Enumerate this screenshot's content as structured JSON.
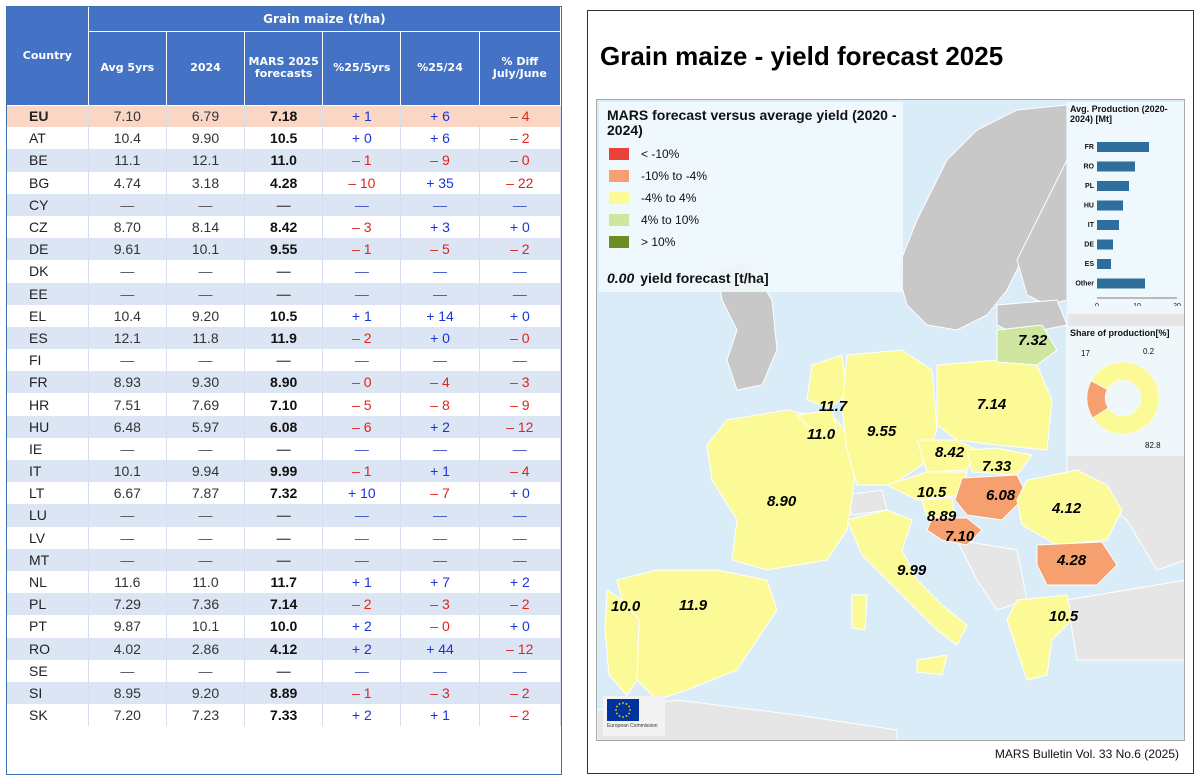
{
  "table": {
    "group_header": "Grain maize (t/ha)",
    "col_country": "Country",
    "col_headers": [
      "Avg 5yrs",
      "2024",
      "MARS 2025 forecasts",
      "%25/5yrs",
      "%25/24",
      "% Diff July/June"
    ],
    "rows": [
      {
        "country": "EU",
        "avg": "7.10",
        "y2024": "6.79",
        "mars": "7.18",
        "p5": "+ 1",
        "p24": "+ 6",
        "diff": "– 4"
      },
      {
        "country": "AT",
        "avg": "10.4",
        "y2024": "9.90",
        "mars": "10.5",
        "p5": "+ 0",
        "p24": "+ 6",
        "diff": "– 2"
      },
      {
        "country": "BE",
        "avg": "11.1",
        "y2024": "12.1",
        "mars": "11.0",
        "p5": "– 1",
        "p24": "– 9",
        "diff": "– 0"
      },
      {
        "country": "BG",
        "avg": "4.74",
        "y2024": "3.18",
        "mars": "4.28",
        "p5": "– 10",
        "p24": "+ 35",
        "diff": "– 22"
      },
      {
        "country": "CY",
        "avg": "—",
        "y2024": "—",
        "mars": "—",
        "p5": "—",
        "p24": "—",
        "diff": "—"
      },
      {
        "country": "CZ",
        "avg": "8.70",
        "y2024": "8.14",
        "mars": "8.42",
        "p5": "– 3",
        "p24": "+ 3",
        "diff": "+ 0"
      },
      {
        "country": "DE",
        "avg": "9.61",
        "y2024": "10.1",
        "mars": "9.55",
        "p5": "– 1",
        "p24": "– 5",
        "diff": "– 2"
      },
      {
        "country": "DK",
        "avg": "—",
        "y2024": "—",
        "mars": "—",
        "p5": "—",
        "p24": "—",
        "diff": "—"
      },
      {
        "country": "EE",
        "avg": "—",
        "y2024": "—",
        "mars": "—",
        "p5": "—",
        "p24": "—",
        "diff": "—"
      },
      {
        "country": "EL",
        "avg": "10.4",
        "y2024": "9.20",
        "mars": "10.5",
        "p5": "+ 1",
        "p24": "+ 14",
        "diff": "+ 0"
      },
      {
        "country": "ES",
        "avg": "12.1",
        "y2024": "11.8",
        "mars": "11.9",
        "p5": "– 2",
        "p24": "+ 0",
        "diff": "– 0"
      },
      {
        "country": "FI",
        "avg": "—",
        "y2024": "—",
        "mars": "—",
        "p5": "—",
        "p24": "—",
        "diff": "—"
      },
      {
        "country": "FR",
        "avg": "8.93",
        "y2024": "9.30",
        "mars": "8.90",
        "p5": "– 0",
        "p24": "– 4",
        "diff": "– 3"
      },
      {
        "country": "HR",
        "avg": "7.51",
        "y2024": "7.69",
        "mars": "7.10",
        "p5": "– 5",
        "p24": "– 8",
        "diff": "– 9"
      },
      {
        "country": "HU",
        "avg": "6.48",
        "y2024": "5.97",
        "mars": "6.08",
        "p5": "– 6",
        "p24": "+ 2",
        "diff": "– 12"
      },
      {
        "country": "IE",
        "avg": "—",
        "y2024": "—",
        "mars": "—",
        "p5": "—",
        "p24": "—",
        "diff": "—"
      },
      {
        "country": "IT",
        "avg": "10.1",
        "y2024": "9.94",
        "mars": "9.99",
        "p5": "– 1",
        "p24": "+ 1",
        "diff": "– 4"
      },
      {
        "country": "LT",
        "avg": "6.67",
        "y2024": "7.87",
        "mars": "7.32",
        "p5": "+ 10",
        "p24": "– 7",
        "diff": "+ 0"
      },
      {
        "country": "LU",
        "avg": "—",
        "y2024": "—",
        "mars": "—",
        "p5": "—",
        "p24": "—",
        "diff": "—"
      },
      {
        "country": "LV",
        "avg": "—",
        "y2024": "—",
        "mars": "—",
        "p5": "—",
        "p24": "—",
        "diff": "—"
      },
      {
        "country": "MT",
        "avg": "—",
        "y2024": "—",
        "mars": "—",
        "p5": "—",
        "p24": "—",
        "diff": "—"
      },
      {
        "country": "NL",
        "avg": "11.6",
        "y2024": "11.0",
        "mars": "11.7",
        "p5": "+ 1",
        "p24": "+ 7",
        "diff": "+ 2"
      },
      {
        "country": "PL",
        "avg": "7.29",
        "y2024": "7.36",
        "mars": "7.14",
        "p5": "– 2",
        "p24": "– 3",
        "diff": "– 2"
      },
      {
        "country": "PT",
        "avg": "9.87",
        "y2024": "10.1",
        "mars": "10.0",
        "p5": "+ 2",
        "p24": "– 0",
        "diff": "+ 0"
      },
      {
        "country": "RO",
        "avg": "4.02",
        "y2024": "2.86",
        "mars": "4.12",
        "p5": "+ 2",
        "p24": "+ 44",
        "diff": "– 12"
      },
      {
        "country": "SE",
        "avg": "—",
        "y2024": "—",
        "mars": "—",
        "p5": "—",
        "p24": "—",
        "diff": "—"
      },
      {
        "country": "SI",
        "avg": "8.95",
        "y2024": "9.20",
        "mars": "8.89",
        "p5": "– 1",
        "p24": "– 3",
        "diff": "– 2"
      },
      {
        "country": "SK",
        "avg": "7.20",
        "y2024": "7.23",
        "mars": "7.33",
        "p5": "+ 2",
        "p24": "+ 1",
        "diff": "– 2"
      }
    ]
  },
  "map": {
    "title": "Grain maize - yield forecast 2025",
    "legend_title": "MARS forecast versus average yield (2020 - 2024)",
    "legend": [
      {
        "label": "< -10%",
        "color": "#e8423b"
      },
      {
        "label": "-10% to -4%",
        "color": "#f5a06e"
      },
      {
        "label": "-4% to 4%",
        "color": "#fbfa96"
      },
      {
        "label": "4% to 10%",
        "color": "#cfe6a0"
      },
      {
        "label": "> 10%",
        "color": "#6b8e23"
      }
    ],
    "legend_note_value": "0.00",
    "legend_note_text": "yield forecast [t/ha]",
    "footer": "MARS Bulletin Vol. 33 No.6 (2025)",
    "eu_flag_text": "European Commission",
    "region_labels": [
      {
        "code": "LT",
        "value": "7.32",
        "cls": "4% to 10%"
      },
      {
        "code": "PL",
        "value": "7.14",
        "cls": "-4% to 4%"
      },
      {
        "code": "NL",
        "value": "11.7",
        "cls": "-4% to 4%"
      },
      {
        "code": "BE",
        "value": "11.0",
        "cls": "-4% to 4%"
      },
      {
        "code": "DE",
        "value": "9.55",
        "cls": "-4% to 4%"
      },
      {
        "code": "CZ",
        "value": "8.42",
        "cls": "-4% to 4%"
      },
      {
        "code": "SK",
        "value": "7.33",
        "cls": "-4% to 4%"
      },
      {
        "code": "AT",
        "value": "10.5",
        "cls": "-4% to 4%"
      },
      {
        "code": "HU",
        "value": "6.08",
        "cls": "-10% to -4%"
      },
      {
        "code": "SI",
        "value": "8.89",
        "cls": "-4% to 4%"
      },
      {
        "code": "HR",
        "value": "7.10",
        "cls": "-10% to -4%"
      },
      {
        "code": "RO",
        "value": "4.12",
        "cls": "-4% to 4%"
      },
      {
        "code": "FR",
        "value": "8.90",
        "cls": "-4% to 4%"
      },
      {
        "code": "IT",
        "value": "9.99",
        "cls": "-4% to 4%"
      },
      {
        "code": "BG",
        "value": "4.28",
        "cls": "-10% to -4%"
      },
      {
        "code": "PT",
        "value": "10.0",
        "cls": "-4% to 4%"
      },
      {
        "code": "ES",
        "value": "11.9",
        "cls": "-4% to 4%"
      },
      {
        "code": "EL",
        "value": "10.5",
        "cls": "-4% to 4%"
      }
    ]
  },
  "chart_data": [
    {
      "type": "bar",
      "title": "Avg. Production (2020-2024) [Mt]",
      "categories": [
        "FR",
        "RO",
        "PL",
        "HU",
        "IT",
        "DE",
        "ES",
        "Other"
      ],
      "values": [
        13,
        9.5,
        8,
        6.5,
        5.5,
        4,
        3.5,
        12
      ],
      "xlim": [
        0,
        20
      ],
      "xticks": [
        "0",
        "10",
        "20"
      ],
      "orientation": "horizontal",
      "color": "#2e6f9e"
    },
    {
      "type": "pie",
      "title": "Share of production[%]",
      "slices": [
        {
          "label": "82.8",
          "value": 82.8,
          "color": "#fbfa96"
        },
        {
          "label": "17",
          "value": 17,
          "color": "#f5a06e"
        },
        {
          "label": "0.2",
          "value": 0.2,
          "color": "#cfe6a0"
        }
      ]
    }
  ]
}
